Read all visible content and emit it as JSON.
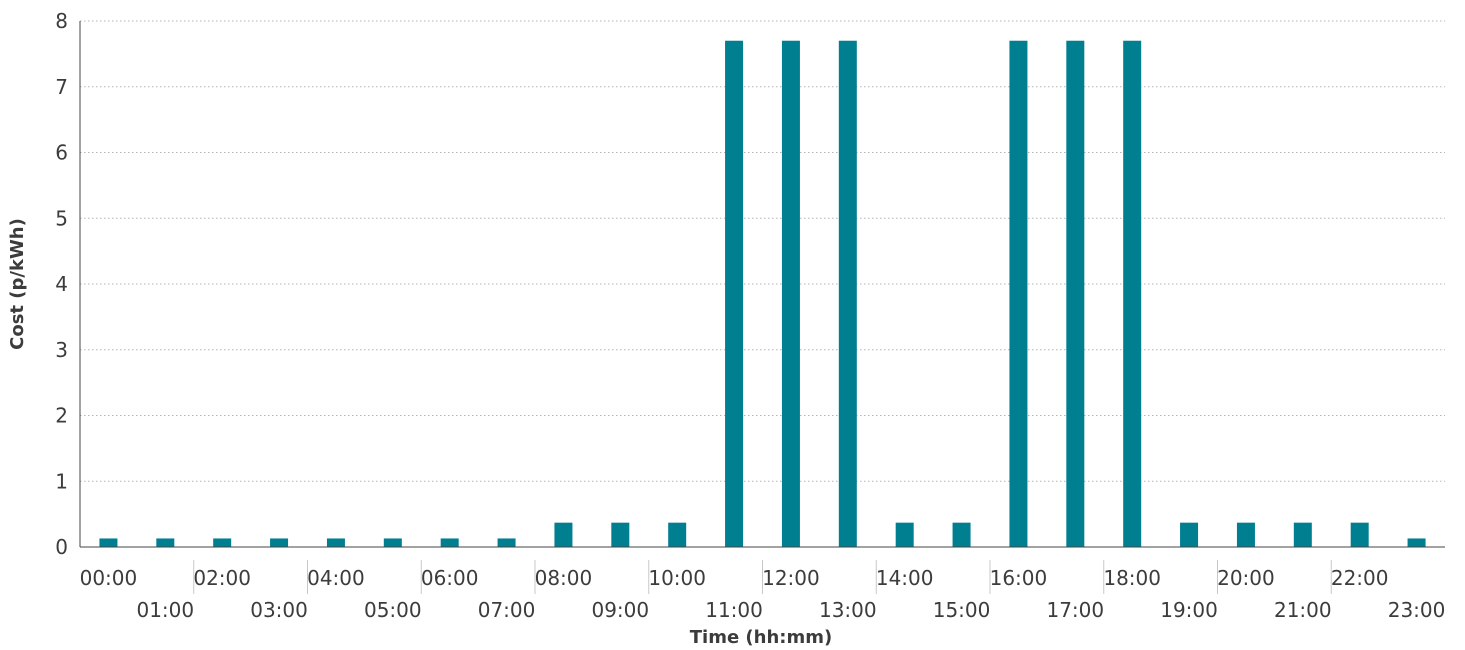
{
  "chart_data": {
    "type": "bar",
    "xlabel": "Time (hh:mm)",
    "ylabel": "Cost (p/kWh)",
    "ylim": [
      0,
      8
    ],
    "yticks": [
      0,
      1,
      2,
      3,
      4,
      5,
      6,
      7,
      8
    ],
    "grid": true,
    "bar_color": "#007f91",
    "categories": [
      "00:00",
      "01:00",
      "02:00",
      "03:00",
      "04:00",
      "05:00",
      "06:00",
      "07:00",
      "08:00",
      "09:00",
      "10:00",
      "11:00",
      "12:00",
      "13:00",
      "14:00",
      "15:00",
      "16:00",
      "17:00",
      "18:00",
      "19:00",
      "20:00",
      "21:00",
      "22:00",
      "23:00"
    ],
    "values": [
      0.13,
      0.13,
      0.13,
      0.13,
      0.13,
      0.13,
      0.13,
      0.13,
      0.37,
      0.37,
      0.37,
      7.7,
      7.7,
      7.7,
      0.37,
      0.37,
      7.7,
      7.7,
      7.7,
      0.37,
      0.37,
      0.37,
      0.37,
      0.13
    ]
  }
}
